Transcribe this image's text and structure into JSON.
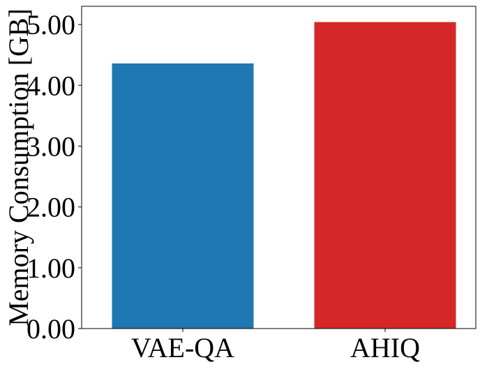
{
  "chart_data": {
    "type": "bar",
    "categories": [
      "VAE-QA",
      "AHIQ"
    ],
    "values": [
      4.36,
      5.04
    ],
    "colors": [
      "#1f77b4",
      "#d62728"
    ],
    "xlabel": "",
    "ylabel": "Memory Consumption [GB]",
    "ylim": [
      0,
      5.3
    ],
    "yticks": [
      "0.00",
      "1.00",
      "2.00",
      "3.00",
      "4.00",
      "5.00"
    ],
    "grid": false,
    "legend": "none"
  }
}
